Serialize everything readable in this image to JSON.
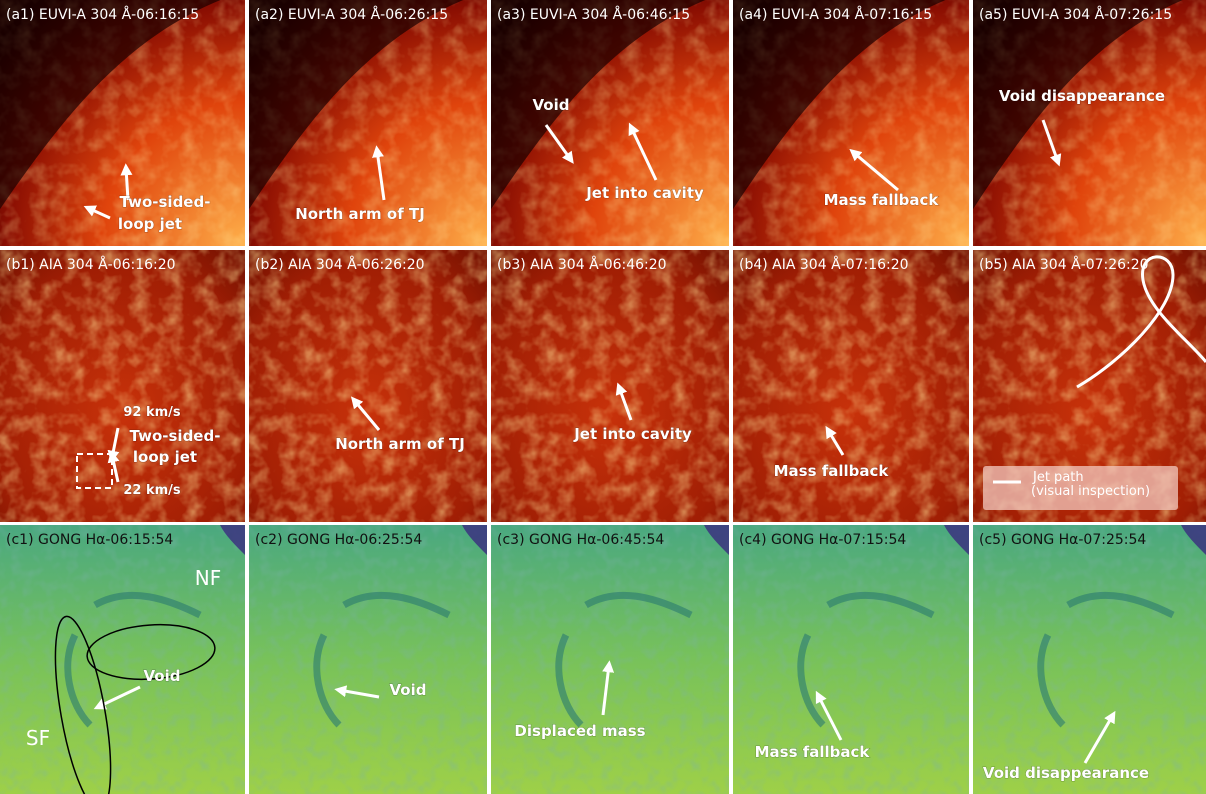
{
  "panels": [
    {
      "title": "(a1) EUVI-A 304 Å-06:16:15",
      "annotations": [
        "Two-sided-",
        "loop jet"
      ]
    },
    {
      "title": "(a2) EUVI-A 304 Å-06:26:15",
      "annotations": [
        "North arm of TJ"
      ]
    },
    {
      "title": "(a3) EUVI-A 304 Å-06:46:15",
      "annotations": [
        "Void",
        "Jet into cavity"
      ]
    },
    {
      "title": "(a4) EUVI-A 304 Å-07:16:15",
      "annotations": [
        "Mass fallback"
      ]
    },
    {
      "title": "(a5) EUVI-A 304 Å-07:26:15",
      "annotations": [
        "Void disappearance"
      ]
    },
    {
      "title": "(b1) AIA 304 Å-06:16:20",
      "annotations": [
        "92 km/s",
        "Two-sided-",
        "loop jet",
        "22 km/s"
      ]
    },
    {
      "title": "(b2) AIA 304 Å-06:26:20",
      "annotations": [
        "North arm of TJ"
      ]
    },
    {
      "title": "(b3) AIA 304 Å-06:46:20",
      "annotations": [
        "Jet into cavity"
      ]
    },
    {
      "title": "(b4) AIA 304 Å-07:16:20",
      "annotations": [
        "Mass fallback"
      ]
    },
    {
      "title": "(b5) AIA 304 Å-07:26:20",
      "annotations": [
        "Jet path",
        "(visual inspection)"
      ]
    },
    {
      "title": "(c1) GONG Hα-06:15:54",
      "annotations": [
        "NF",
        "Void",
        "SF"
      ]
    },
    {
      "title": "(c2) GONG Hα-06:25:54",
      "annotations": [
        "Void"
      ]
    },
    {
      "title": "(c3) GONG Hα-06:45:54",
      "annotations": [
        "Displaced mass"
      ]
    },
    {
      "title": "(c4) GONG Hα-07:15:54",
      "annotations": [
        "Mass fallback"
      ]
    },
    {
      "title": "(c5) GONG Hα-07:25:54",
      "annotations": [
        "Void disappearance"
      ]
    }
  ]
}
